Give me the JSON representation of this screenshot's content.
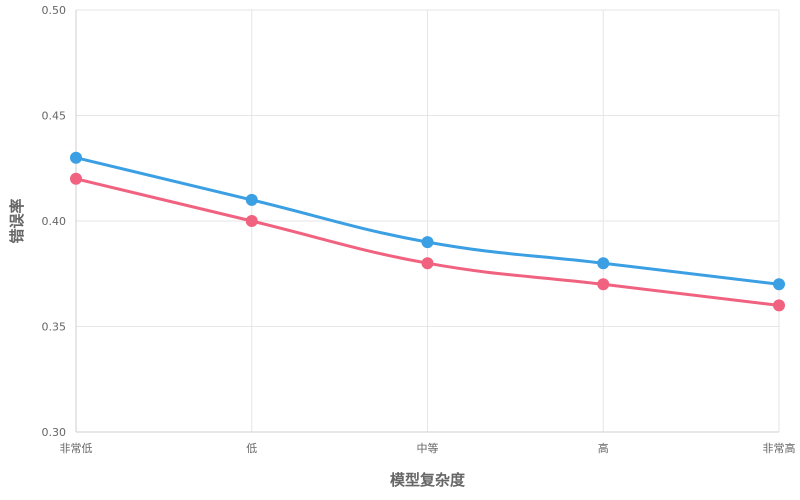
{
  "chart_data": {
    "type": "line",
    "title": "",
    "xlabel": "模型复杂度",
    "ylabel": "错误率",
    "categories": [
      "非常低",
      "低",
      "中等",
      "高",
      "非常高"
    ],
    "ylim": [
      0.3,
      0.5
    ],
    "yticks": [
      "0.30",
      "0.35",
      "0.40",
      "0.45",
      "0.50"
    ],
    "grid": true,
    "series": [
      {
        "values": [
          0.43,
          0.41,
          0.39,
          0.38,
          0.37
        ],
        "color": "#3b9fe3"
      },
      {
        "values": [
          0.42,
          0.4,
          0.38,
          0.37,
          0.36
        ],
        "color": "#f0627f"
      }
    ]
  }
}
